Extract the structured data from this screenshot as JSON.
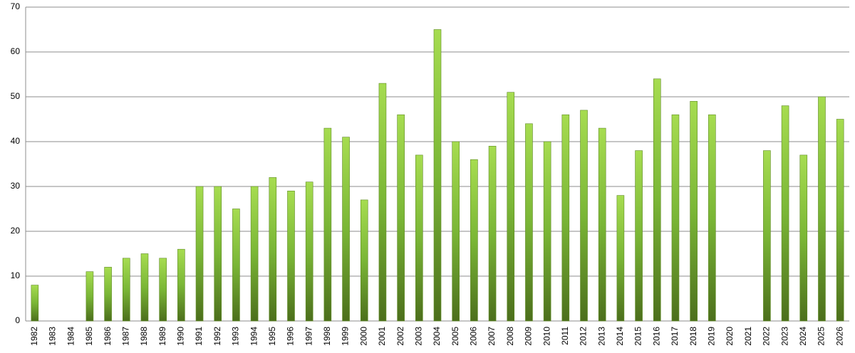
{
  "chart_data": {
    "type": "bar",
    "categories": [
      "1982",
      "1983",
      "1984",
      "1985",
      "1986",
      "1987",
      "1988",
      "1989",
      "1990",
      "1991",
      "1992",
      "1993",
      "1994",
      "1995",
      "1996",
      "1997",
      "1998",
      "1999",
      "2000",
      "2001",
      "2002",
      "2003",
      "2004",
      "2005",
      "2006",
      "2007",
      "2008",
      "2009",
      "2010",
      "2011",
      "2012",
      "2013",
      "2014",
      "2015",
      "2016",
      "2017",
      "2018",
      "2019",
      "2020",
      "2021",
      "2022",
      "2023",
      "2024",
      "2025",
      "2026"
    ],
    "values": [
      8,
      null,
      null,
      11,
      12,
      14,
      15,
      14,
      16,
      30,
      30,
      25,
      30,
      32,
      29,
      31,
      43,
      41,
      27,
      53,
      46,
      37,
      65,
      40,
      36,
      39,
      51,
      44,
      40,
      46,
      47,
      43,
      28,
      38,
      54,
      46,
      49,
      46,
      null,
      null,
      38,
      48,
      37,
      50,
      45
    ],
    "color": "#5f8a24",
    "ylim": [
      0,
      70
    ],
    "yticks": [
      0,
      10,
      20,
      30,
      40,
      50,
      60,
      70
    ],
    "grid": true
  }
}
